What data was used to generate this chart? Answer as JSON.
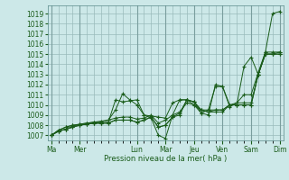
{
  "xlabel": "Pression niveau de la mer( hPa )",
  "bg_color": "#cce8e8",
  "grid_color": "#99bbbb",
  "line_color": "#1a5c1a",
  "ylim": [
    1006.5,
    1019.8
  ],
  "yticks": [
    1007,
    1008,
    1009,
    1010,
    1011,
    1012,
    1013,
    1014,
    1015,
    1016,
    1017,
    1018,
    1019
  ],
  "day_labels": [
    "Ma",
    "Mer",
    "Lun",
    "Mar",
    "Jeu",
    "Ven",
    "Sam",
    "Dim"
  ],
  "day_positions": [
    0,
    4,
    12,
    16,
    20,
    24,
    28,
    32
  ],
  "n_points": 33,
  "series": [
    [
      1007.0,
      1007.5,
      1007.8,
      1008.0,
      1008.0,
      1008.1,
      1008.2,
      1008.2,
      1008.3,
      1010.5,
      1010.3,
      1010.4,
      1010.5,
      1009.0,
      1008.7,
      1007.0,
      1006.7,
      1009.0,
      1010.5,
      1010.5,
      1010.3,
      1009.2,
      1009.0,
      1012.0,
      1011.8,
      1010.0,
      1010.0,
      1013.8,
      1014.7,
      1013.0,
      1015.2,
      1019.0,
      1019.2
    ],
    [
      1007.0,
      1007.5,
      1007.8,
      1008.0,
      1008.1,
      1008.2,
      1008.3,
      1008.4,
      1008.5,
      1009.5,
      1011.1,
      1010.5,
      1010.0,
      1009.0,
      1008.9,
      1008.8,
      1008.7,
      1010.2,
      1010.5,
      1010.5,
      1010.0,
      1009.2,
      1009.5,
      1011.8,
      1011.8,
      1009.8,
      1010.2,
      1011.0,
      1011.0,
      1013.2,
      1015.2,
      1015.2,
      1015.2
    ],
    [
      1007.0,
      1007.4,
      1007.6,
      1007.8,
      1008.0,
      1008.1,
      1008.2,
      1008.2,
      1008.2,
      1008.5,
      1008.5,
      1008.5,
      1008.3,
      1008.5,
      1008.8,
      1007.8,
      1008.0,
      1008.8,
      1009.2,
      1010.5,
      1010.3,
      1009.5,
      1009.3,
      1009.5,
      1009.5,
      1010.0,
      1010.0,
      1010.0,
      1010.0,
      1013.0,
      1015.0,
      1015.0,
      1015.2
    ],
    [
      1007.0,
      1007.4,
      1007.6,
      1007.8,
      1008.0,
      1008.1,
      1008.2,
      1008.2,
      1008.2,
      1008.5,
      1008.5,
      1008.5,
      1008.3,
      1008.5,
      1008.8,
      1007.8,
      1008.0,
      1008.8,
      1009.0,
      1010.5,
      1010.3,
      1009.5,
      1009.3,
      1009.3,
      1009.3,
      1010.0,
      1010.0,
      1010.0,
      1010.0,
      1013.0,
      1015.0,
      1015.0,
      1015.0
    ],
    [
      1007.0,
      1007.4,
      1007.6,
      1007.9,
      1008.1,
      1008.2,
      1008.3,
      1008.3,
      1008.5,
      1008.7,
      1008.8,
      1008.8,
      1008.6,
      1008.7,
      1009.0,
      1008.2,
      1008.5,
      1009.0,
      1009.3,
      1010.2,
      1010.0,
      1009.5,
      1009.5,
      1009.5,
      1009.5,
      1010.0,
      1010.2,
      1010.2,
      1010.2,
      1013.0,
      1015.0,
      1015.0,
      1015.0
    ]
  ]
}
